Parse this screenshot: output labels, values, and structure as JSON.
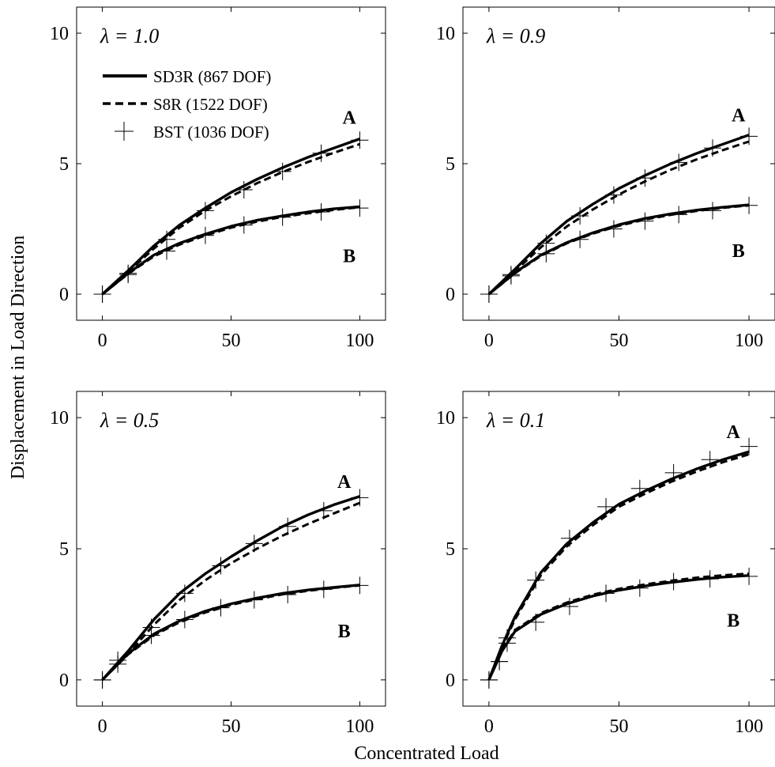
{
  "figure": {
    "ylabel": "Displacement in Load Direction",
    "xlabel": "Concentrated Load"
  },
  "legend": [
    {
      "label": "SD3R (867 DOF)",
      "style": "solid"
    },
    {
      "label": "S8R (1522 DOF)",
      "style": "dashed"
    },
    {
      "label": "BST (1036 DOF)",
      "style": "plus-marker"
    }
  ],
  "colors": {
    "ink": "#000000",
    "background": "#ffffff"
  },
  "chart_data": [
    {
      "type": "line",
      "annotation": "λ = 1.0",
      "xlim": [
        -10,
        110
      ],
      "ylim": [
        -1,
        11
      ],
      "xticks": [
        0,
        50,
        100
      ],
      "yticks": [
        0,
        5,
        10
      ],
      "xticklabels": [
        "0",
        "50",
        "100"
      ],
      "yticklabels": [
        "0",
        "5",
        "10"
      ],
      "labels": [
        {
          "text": "A",
          "x": 99,
          "y": 6.8
        },
        {
          "text": "B",
          "x": 99,
          "y": 1.5
        }
      ],
      "series": [
        {
          "name": "SD3R (867 DOF)",
          "curve": "A",
          "x": [
            0,
            10,
            20,
            30,
            40,
            50,
            60,
            70,
            80,
            90,
            100
          ],
          "y": [
            0,
            0.9,
            1.85,
            2.65,
            3.3,
            3.9,
            4.4,
            4.85,
            5.25,
            5.6,
            5.95
          ]
        },
        {
          "name": "S8R (1522 DOF)",
          "curve": "A",
          "x": [
            0,
            10,
            20,
            30,
            40,
            50,
            60,
            70,
            80,
            90,
            100
          ],
          "y": [
            0,
            0.85,
            1.75,
            2.55,
            3.2,
            3.75,
            4.25,
            4.68,
            5.07,
            5.42,
            5.75
          ]
        },
        {
          "name": "BST (1036 DOF)",
          "curve": "A",
          "x": [
            0,
            10,
            25,
            40,
            55,
            70,
            85,
            100
          ],
          "y": [
            0,
            0.8,
            2.1,
            3.2,
            4.0,
            4.7,
            5.4,
            5.9
          ]
        },
        {
          "name": "SD3R (867 DOF)",
          "curve": "B",
          "x": [
            0,
            10,
            20,
            30,
            40,
            50,
            60,
            70,
            80,
            90,
            100
          ],
          "y": [
            0,
            0.8,
            1.5,
            1.95,
            2.3,
            2.6,
            2.83,
            3.0,
            3.15,
            3.27,
            3.35
          ]
        },
        {
          "name": "S8R (1522 DOF)",
          "curve": "B",
          "x": [
            0,
            10,
            20,
            30,
            40,
            50,
            60,
            70,
            80,
            90,
            100
          ],
          "y": [
            0,
            0.78,
            1.45,
            1.9,
            2.25,
            2.55,
            2.78,
            2.96,
            3.1,
            3.23,
            3.33
          ]
        },
        {
          "name": "BST (1036 DOF)",
          "curve": "B",
          "x": [
            0,
            10,
            25,
            40,
            55,
            70,
            85,
            100
          ],
          "y": [
            0,
            0.75,
            1.65,
            2.25,
            2.65,
            2.95,
            3.15,
            3.3
          ]
        }
      ]
    },
    {
      "type": "line",
      "annotation": "λ = 0.9",
      "xlim": [
        -10,
        110
      ],
      "ylim": [
        -1,
        11
      ],
      "xticks": [
        0,
        50,
        100
      ],
      "yticks": [
        0,
        5,
        10
      ],
      "xticklabels": [
        "0",
        "50",
        "100"
      ],
      "yticklabels": [
        "0",
        "5",
        "10"
      ],
      "labels": [
        {
          "text": "A",
          "x": 99,
          "y": 6.9
        },
        {
          "text": "B",
          "x": 99,
          "y": 1.7
        }
      ],
      "series": [
        {
          "name": "SD3R (867 DOF)",
          "curve": "A",
          "x": [
            0,
            10,
            20,
            30,
            40,
            50,
            60,
            70,
            80,
            90,
            100
          ],
          "y": [
            0,
            0.95,
            1.95,
            2.8,
            3.45,
            4.05,
            4.55,
            5.0,
            5.4,
            5.75,
            6.1
          ]
        },
        {
          "name": "S8R (1522 DOF)",
          "curve": "A",
          "x": [
            0,
            10,
            20,
            30,
            40,
            50,
            60,
            70,
            80,
            90,
            100
          ],
          "y": [
            0,
            0.88,
            1.8,
            2.6,
            3.25,
            3.82,
            4.32,
            4.77,
            5.17,
            5.52,
            5.85
          ]
        },
        {
          "name": "BST (1036 DOF)",
          "curve": "A",
          "x": [
            0,
            8.5,
            22,
            35,
            48,
            60,
            73,
            86,
            100
          ],
          "y": [
            0,
            0.75,
            1.95,
            3.0,
            3.8,
            4.45,
            5.05,
            5.6,
            6.05
          ]
        },
        {
          "name": "SD3R (867 DOF)",
          "curve": "B",
          "x": [
            0,
            10,
            20,
            30,
            40,
            50,
            60,
            70,
            80,
            90,
            100
          ],
          "y": [
            0,
            0.82,
            1.5,
            1.98,
            2.35,
            2.66,
            2.9,
            3.08,
            3.22,
            3.33,
            3.42
          ]
        },
        {
          "name": "S8R (1522 DOF)",
          "curve": "B",
          "x": [
            0,
            10,
            20,
            30,
            40,
            50,
            60,
            70,
            80,
            90,
            100
          ],
          "y": [
            0,
            0.8,
            1.47,
            1.95,
            2.32,
            2.62,
            2.86,
            3.04,
            3.19,
            3.31,
            3.4
          ]
        },
        {
          "name": "BST (1036 DOF)",
          "curve": "B",
          "x": [
            0,
            8.5,
            22,
            35,
            48,
            60,
            73,
            86,
            100
          ],
          "y": [
            0,
            0.7,
            1.55,
            2.1,
            2.5,
            2.8,
            3.05,
            3.2,
            3.4
          ]
        }
      ]
    },
    {
      "type": "line",
      "annotation": "λ = 0.5",
      "xlim": [
        -10,
        110
      ],
      "ylim": [
        -1,
        11
      ],
      "xticks": [
        0,
        50,
        100
      ],
      "yticks": [
        0,
        5,
        10
      ],
      "xticklabels": [
        "0",
        "50",
        "100"
      ],
      "yticklabels": [
        "0",
        "5",
        "10"
      ],
      "labels": [
        {
          "text": "A",
          "x": 97,
          "y": 7.6
        },
        {
          "text": "B",
          "x": 97,
          "y": 1.9
        }
      ],
      "series": [
        {
          "name": "SD3R (867 DOF)",
          "curve": "A",
          "x": [
            0,
            10,
            20,
            30,
            40,
            50,
            60,
            70,
            80,
            90,
            100
          ],
          "y": [
            0,
            1.1,
            2.3,
            3.3,
            4.05,
            4.7,
            5.3,
            5.85,
            6.3,
            6.68,
            7.0
          ]
        },
        {
          "name": "S8R (1522 DOF)",
          "curve": "A",
          "x": [
            0,
            10,
            20,
            30,
            40,
            50,
            60,
            70,
            80,
            90,
            100
          ],
          "y": [
            0,
            1.0,
            2.1,
            3.05,
            3.8,
            4.45,
            5.0,
            5.5,
            5.95,
            6.35,
            6.75
          ]
        },
        {
          "name": "BST (1036 DOF)",
          "curve": "A",
          "x": [
            0,
            6,
            19,
            32,
            46,
            59,
            72,
            86,
            100
          ],
          "y": [
            0,
            0.6,
            2.0,
            3.3,
            4.35,
            5.2,
            5.85,
            6.45,
            6.95
          ]
        },
        {
          "name": "SD3R (867 DOF)",
          "curve": "B",
          "x": [
            0,
            10,
            20,
            30,
            40,
            50,
            60,
            70,
            80,
            90,
            100
          ],
          "y": [
            0,
            1.0,
            1.75,
            2.25,
            2.62,
            2.9,
            3.12,
            3.3,
            3.43,
            3.53,
            3.62
          ]
        },
        {
          "name": "S8R (1522 DOF)",
          "curve": "B",
          "x": [
            0,
            10,
            20,
            30,
            40,
            50,
            60,
            70,
            80,
            90,
            100
          ],
          "y": [
            0,
            0.97,
            1.7,
            2.2,
            2.57,
            2.86,
            3.08,
            3.26,
            3.4,
            3.51,
            3.6
          ]
        },
        {
          "name": "BST (1036 DOF)",
          "curve": "B",
          "x": [
            0,
            6,
            19,
            32,
            46,
            59,
            72,
            86,
            100
          ],
          "y": [
            0,
            0.75,
            1.7,
            2.3,
            2.75,
            3.05,
            3.25,
            3.45,
            3.6
          ]
        }
      ]
    },
    {
      "type": "line",
      "annotation": "λ = 0.1",
      "xlim": [
        -10,
        110
      ],
      "ylim": [
        -1,
        11
      ],
      "xticks": [
        0,
        50,
        100
      ],
      "yticks": [
        0,
        5,
        10
      ],
      "xticklabels": [
        "0",
        "50",
        "100"
      ],
      "yticklabels": [
        "0",
        "5",
        "10"
      ],
      "labels": [
        {
          "text": "A",
          "x": 97,
          "y": 9.5
        },
        {
          "text": "B",
          "x": 97,
          "y": 2.3
        }
      ],
      "series": [
        {
          "name": "SD3R (867 DOF)",
          "curve": "A",
          "x": [
            0,
            5,
            10,
            20,
            30,
            40,
            50,
            60,
            70,
            80,
            90,
            100
          ],
          "y": [
            0,
            1.3,
            2.4,
            4.1,
            5.2,
            6.0,
            6.7,
            7.2,
            7.65,
            8.05,
            8.4,
            8.7
          ]
        },
        {
          "name": "S8R (1522 DOF)",
          "curve": "A",
          "x": [
            0,
            5,
            10,
            20,
            30,
            40,
            50,
            60,
            70,
            80,
            90,
            100
          ],
          "y": [
            0,
            1.25,
            2.3,
            4.0,
            5.1,
            5.9,
            6.6,
            7.1,
            7.55,
            7.95,
            8.3,
            8.6
          ]
        },
        {
          "name": "BST (1036 DOF)",
          "curve": "A",
          "x": [
            0,
            4,
            7,
            18,
            31,
            45,
            58,
            71,
            85,
            100
          ],
          "y": [
            0,
            0.7,
            1.6,
            3.8,
            5.4,
            6.6,
            7.3,
            7.9,
            8.4,
            8.9
          ]
        },
        {
          "name": "SD3R (867 DOF)",
          "curve": "B",
          "x": [
            0,
            5,
            10,
            20,
            30,
            40,
            50,
            60,
            70,
            80,
            90,
            100
          ],
          "y": [
            0,
            1.1,
            1.85,
            2.5,
            2.9,
            3.2,
            3.42,
            3.58,
            3.72,
            3.83,
            3.92,
            3.98
          ]
        },
        {
          "name": "S8R (1522 DOF)",
          "curve": "B",
          "x": [
            0,
            5,
            10,
            20,
            30,
            40,
            50,
            60,
            70,
            80,
            90,
            100
          ],
          "y": [
            0,
            1.12,
            1.9,
            2.55,
            2.95,
            3.25,
            3.47,
            3.64,
            3.78,
            3.9,
            3.99,
            4.05
          ]
        },
        {
          "name": "BST (1036 DOF)",
          "curve": "B",
          "x": [
            0,
            4,
            7,
            18,
            31,
            45,
            58,
            71,
            85,
            100
          ],
          "y": [
            0,
            0.7,
            1.4,
            2.2,
            2.8,
            3.3,
            3.5,
            3.75,
            3.85,
            3.95
          ]
        }
      ]
    }
  ]
}
